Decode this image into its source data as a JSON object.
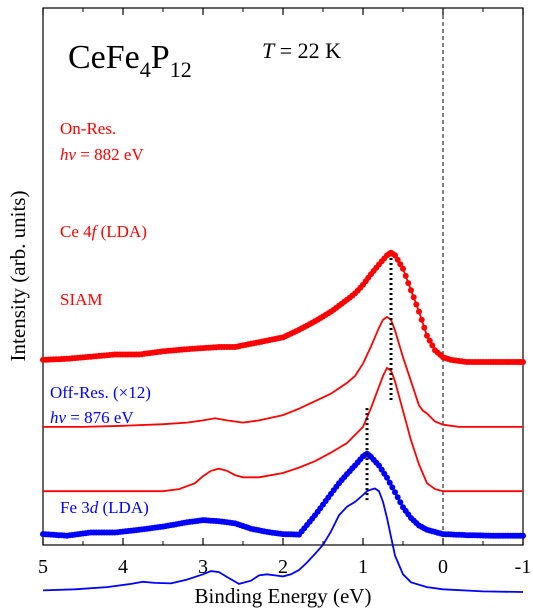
{
  "chart_data": {
    "type": "line",
    "title": "",
    "compound": {
      "prefix": "CeFe",
      "sub1": "4",
      "mid": "P",
      "sub2": "12"
    },
    "temperature": {
      "sym": "T",
      "rest": " = 22 K"
    },
    "xlabel": "Binding Energy (eV)",
    "ylabel": "Intensity (arb. units)",
    "xlim": [
      5,
      -1
    ],
    "x_reversed": true,
    "xticks": [
      5,
      4,
      3,
      2,
      1,
      0,
      -1
    ],
    "xtick_labels": [
      "5",
      "4",
      "3",
      "2",
      "1",
      "0",
      "-1"
    ],
    "yticks": false,
    "grid": false,
    "reference_line": {
      "x": 0,
      "style": "dashed",
      "color": "#000000"
    },
    "series": [
      {
        "label_line1": "On-Res.",
        "label_line2_sym": "hν",
        "label_line2_rest": " = 882 eV",
        "color": "#ff0000",
        "style": "markers+line",
        "offset": 4.2,
        "x": [
          5.0,
          4.7,
          4.4,
          4.1,
          3.8,
          3.5,
          3.2,
          3.0,
          2.8,
          2.6,
          2.4,
          2.2,
          2.0,
          1.8,
          1.6,
          1.4,
          1.2,
          1.1,
          1.0,
          0.9,
          0.8,
          0.7,
          0.65,
          0.6,
          0.5,
          0.4,
          0.3,
          0.2,
          0.1,
          0.0,
          -0.1,
          -0.3,
          -0.6,
          -1.0
        ],
        "y": [
          0.0,
          0.02,
          0.06,
          0.1,
          0.1,
          0.16,
          0.2,
          0.22,
          0.24,
          0.24,
          0.3,
          0.36,
          0.42,
          0.56,
          0.72,
          0.9,
          1.12,
          1.24,
          1.4,
          1.6,
          1.78,
          1.95,
          2.0,
          1.95,
          1.7,
          1.3,
          0.9,
          0.45,
          0.18,
          0.05,
          0.0,
          -0.04,
          -0.04,
          -0.04
        ]
      },
      {
        "label_pre": "Ce 4",
        "label_sym": "f",
        "label_post": "  (LDA)",
        "color": "#ff0000",
        "style": "line",
        "offset": 2.95,
        "x": [
          5.0,
          4.5,
          4.0,
          3.5,
          3.2,
          3.0,
          2.85,
          2.7,
          2.5,
          2.3,
          2.0,
          1.8,
          1.6,
          1.5,
          1.4,
          1.3,
          1.2,
          1.1,
          1.0,
          0.9,
          0.8,
          0.75,
          0.7,
          0.65,
          0.6,
          0.5,
          0.4,
          0.3,
          0.25,
          0.2,
          0.1,
          0.0,
          -0.2,
          -0.5,
          -1.0
        ],
        "y": [
          0.0,
          0.0,
          0.02,
          0.05,
          0.08,
          0.12,
          0.16,
          0.12,
          0.08,
          0.12,
          0.22,
          0.34,
          0.48,
          0.55,
          0.62,
          0.72,
          0.82,
          0.95,
          1.18,
          1.5,
          1.85,
          2.0,
          2.05,
          2.0,
          1.8,
          1.3,
          0.85,
          0.4,
          0.3,
          0.25,
          0.1,
          0.04,
          0.0,
          0.0,
          0.0
        ]
      },
      {
        "label_plain": "SIAM",
        "color": "#ff0000",
        "style": "line",
        "offset": 1.75,
        "x": [
          5.0,
          4.5,
          4.0,
          3.5,
          3.3,
          3.1,
          3.0,
          2.9,
          2.8,
          2.7,
          2.6,
          2.5,
          2.3,
          2.0,
          1.8,
          1.6,
          1.4,
          1.2,
          1.0,
          0.9,
          0.8,
          0.75,
          0.7,
          0.65,
          0.6,
          0.5,
          0.4,
          0.3,
          0.2,
          0.1,
          0.0,
          -0.5,
          -1.0
        ],
        "y": [
          0.0,
          0.0,
          0.0,
          0.0,
          0.04,
          0.15,
          0.28,
          0.38,
          0.42,
          0.38,
          0.3,
          0.26,
          0.26,
          0.34,
          0.44,
          0.56,
          0.72,
          0.9,
          1.2,
          1.55,
          1.95,
          2.15,
          2.3,
          2.25,
          2.05,
          1.5,
          0.95,
          0.5,
          0.15,
          0.04,
          0.0,
          0.0,
          0.0
        ]
      },
      {
        "label_line1": "Off-Res. (×12)",
        "label_line2_sym": "hν",
        "label_line2_rest": " = 876 eV",
        "color": "#0000ff",
        "style": "markers+line",
        "offset": 0.95,
        "x": [
          5.0,
          4.7,
          4.4,
          4.1,
          3.8,
          3.5,
          3.2,
          3.0,
          2.8,
          2.6,
          2.4,
          2.2,
          2.0,
          1.8,
          1.6,
          1.4,
          1.3,
          1.2,
          1.1,
          1.0,
          0.95,
          0.9,
          0.8,
          0.7,
          0.6,
          0.5,
          0.4,
          0.3,
          0.2,
          0.1,
          0.0,
          -0.3,
          -0.6,
          -1.0
        ],
        "y": [
          0.0,
          -0.03,
          0.03,
          0.03,
          0.08,
          0.14,
          0.22,
          0.26,
          0.24,
          0.2,
          0.1,
          0.04,
          0.0,
          -0.01,
          0.35,
          0.75,
          0.95,
          1.12,
          1.28,
          1.45,
          1.5,
          1.44,
          1.28,
          1.05,
          0.78,
          0.5,
          0.3,
          0.16,
          0.08,
          0.04,
          0.0,
          -0.02,
          -0.03,
          -0.03
        ]
      },
      {
        "label_pre": "Fe 3",
        "label_sym": "d",
        "label_post": "  (LDA)",
        "color": "#0000ff",
        "style": "line",
        "offset": -0.1,
        "x": [
          5.0,
          4.6,
          4.2,
          3.9,
          3.75,
          3.6,
          3.4,
          3.2,
          3.0,
          2.9,
          2.8,
          2.7,
          2.55,
          2.4,
          2.3,
          2.2,
          2.1,
          2.0,
          1.9,
          1.8,
          1.7,
          1.6,
          1.5,
          1.4,
          1.3,
          1.2,
          1.1,
          1.0,
          0.95,
          0.9,
          0.85,
          0.8,
          0.75,
          0.7,
          0.65,
          0.6,
          0.5,
          0.4,
          0.2,
          0.0,
          -0.5,
          -1.0
        ],
        "y": [
          0.0,
          0.02,
          0.06,
          0.12,
          0.16,
          0.14,
          0.13,
          0.2,
          0.3,
          0.36,
          0.34,
          0.25,
          0.12,
          0.18,
          0.28,
          0.3,
          0.28,
          0.26,
          0.3,
          0.38,
          0.52,
          0.68,
          0.85,
          1.1,
          1.4,
          1.56,
          1.65,
          1.78,
          1.85,
          1.88,
          1.9,
          1.85,
          1.65,
          1.35,
          1.0,
          0.65,
          0.3,
          0.15,
          0.06,
          0.02,
          -0.02,
          -0.03
        ]
      }
    ],
    "dotted_markers": [
      {
        "x": 0.65,
        "y_from": 3.4,
        "y_to": 6.1
      },
      {
        "x": 0.95,
        "y_from": 1.55,
        "y_to": 3.3
      }
    ]
  }
}
